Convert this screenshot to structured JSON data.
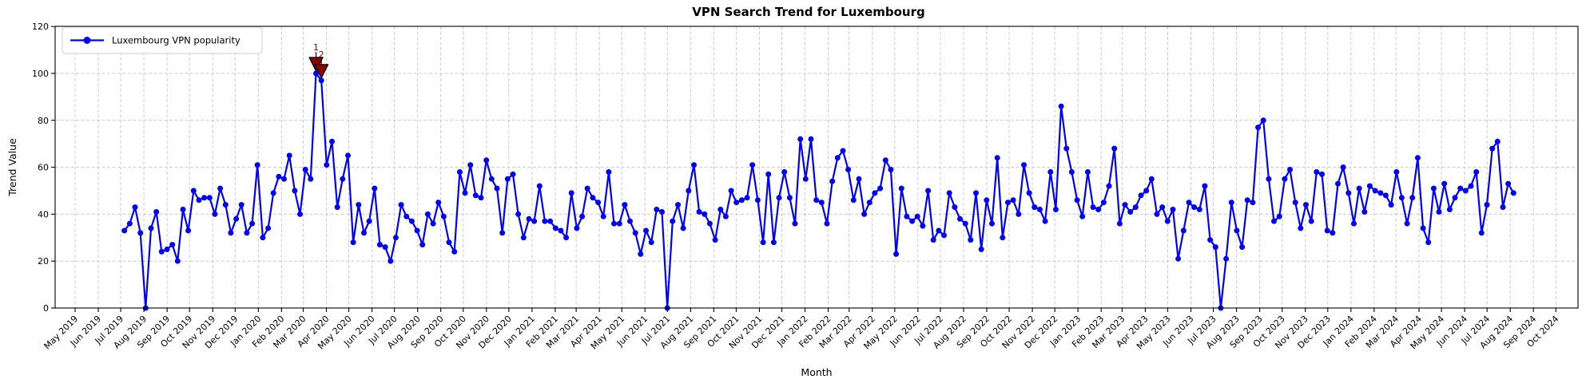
{
  "chart_data": {
    "type": "line",
    "title": "VPN Search Trend for Luxembourg",
    "xlabel": "Month",
    "ylabel": "Trend Value",
    "ylim": [
      0,
      120
    ],
    "yticks": [
      0,
      20,
      40,
      60,
      80,
      100,
      120
    ],
    "grid": true,
    "legend": {
      "label": "Luxembourg VPN popularity",
      "position": "upper left"
    },
    "line_color": "#0000ff",
    "grid_color": "#cccccc",
    "annotation_color": "#8b0000",
    "x_tick_labels": [
      "May 2019",
      "Jun 2019",
      "Jul 2019",
      "Aug 2019",
      "Sep 2019",
      "Oct 2019",
      "Nov 2019",
      "Dec 2019",
      "Jan 2020",
      "Feb 2020",
      "Mar 2020",
      "Apr 2020",
      "May 2020",
      "Jun 2020",
      "Jul 2020",
      "Aug 2020",
      "Sep 2020",
      "Oct 2020",
      "Nov 2020",
      "Dec 2020",
      "Jan 2021",
      "Feb 2021",
      "Mar 2021",
      "Apr 2021",
      "May 2021",
      "Jun 2021",
      "Jul 2021",
      "Aug 2021",
      "Sep 2021",
      "Oct 2021",
      "Nov 2021",
      "Dec 2021",
      "Jan 2022",
      "Feb 2022",
      "Mar 2022",
      "Apr 2022",
      "May 2022",
      "Jun 2022",
      "Jul 2022",
      "Aug 2022",
      "Sep 2022",
      "Oct 2022",
      "Nov 2022",
      "Dec 2022",
      "Jan 2023",
      "Feb 2023",
      "Mar 2023",
      "Apr 2023",
      "May 2023",
      "Jun 2023",
      "Jul 2023",
      "Aug 2023",
      "Sep 2023",
      "Oct 2023",
      "Nov 2023",
      "Dec 2023",
      "Jan 2024",
      "Feb 2024",
      "Mar 2024",
      "Apr 2024",
      "May 2024",
      "Jun 2024",
      "Jul 2024",
      "Aug 2024",
      "Sep 2024",
      "Oct 2024"
    ],
    "series": [
      {
        "name": "Luxembourg VPN popularity",
        "cadence": "weekly",
        "values": [
          33,
          36,
          43,
          32,
          0,
          34,
          41,
          24,
          25,
          27,
          20,
          42,
          33,
          50,
          46,
          47,
          47,
          40,
          51,
          44,
          32,
          38,
          44,
          32,
          36,
          61,
          30,
          34,
          49,
          56,
          55,
          65,
          50,
          40,
          59,
          55,
          100,
          97,
          61,
          71,
          43,
          55,
          65,
          28,
          44,
          32,
          37,
          51,
          27,
          26,
          20,
          30,
          44,
          39,
          37,
          33,
          27,
          40,
          36,
          45,
          39,
          28,
          24,
          58,
          49,
          61,
          48,
          47,
          63,
          55,
          51,
          32,
          55,
          57,
          40,
          30,
          38,
          37,
          52,
          37,
          37,
          34,
          33,
          30,
          49,
          34,
          39,
          51,
          47,
          45,
          39,
          58,
          36,
          36,
          44,
          37,
          32,
          23,
          33,
          28,
          42,
          41,
          0,
          37,
          44,
          34,
          50,
          61,
          41,
          40,
          36,
          29,
          42,
          39,
          50,
          45,
          46,
          47,
          61,
          46,
          28,
          57,
          28,
          47,
          58,
          47,
          36,
          72,
          55,
          72,
          46,
          45,
          36,
          54,
          64,
          67,
          59,
          46,
          55,
          40,
          45,
          49,
          51,
          63,
          59,
          23,
          51,
          39,
          37,
          39,
          35,
          50,
          29,
          33,
          31,
          49,
          43,
          38,
          36,
          29,
          49,
          25,
          46,
          36,
          64,
          30,
          45,
          46,
          40,
          61,
          49,
          43,
          42,
          37,
          58,
          42,
          86,
          68,
          58,
          46,
          39,
          58,
          43,
          42,
          45,
          52,
          68,
          36,
          44,
          41,
          43,
          48,
          50,
          55,
          40,
          43,
          37,
          42,
          21,
          33,
          45,
          43,
          42,
          52,
          29,
          26,
          0,
          21,
          45,
          33,
          26,
          46,
          45,
          77,
          80,
          55,
          37,
          39,
          55,
          59,
          45,
          34,
          44,
          37,
          58,
          57,
          33,
          32,
          53,
          60,
          49,
          36,
          51,
          41,
          52,
          50,
          49,
          48,
          44,
          58,
          47,
          36,
          47,
          64,
          34,
          28,
          51,
          41,
          53,
          42,
          47,
          51,
          50,
          52,
          58,
          32,
          44,
          68,
          71,
          43,
          53,
          49
        ]
      }
    ],
    "annotations": [
      {
        "label": "1",
        "point_index": 36,
        "value": 100
      },
      {
        "label": "2",
        "point_index": 37,
        "value": 97
      }
    ]
  }
}
